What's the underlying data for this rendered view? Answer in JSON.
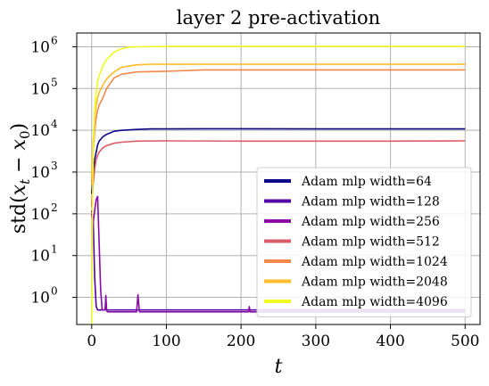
{
  "chart_data": {
    "type": "line",
    "title": "layer 2 pre-activation",
    "xlabel": "t",
    "ylabel": "std(x_t − x_0)",
    "xlim": [
      -20,
      520
    ],
    "ylim_log10": [
      -0.65,
      6.33
    ],
    "yscale": "log",
    "grid": true,
    "legend_position": "lower-right",
    "x_ticks": [
      0,
      100,
      200,
      300,
      400,
      500
    ],
    "x_tick_labels": [
      "0",
      "100",
      "200",
      "300",
      "400",
      "500"
    ],
    "y_ticks_log10": [
      0,
      1,
      2,
      3,
      4,
      5,
      6
    ],
    "y_tick_labels": [
      "10^0",
      "10^1",
      "10^2",
      "10^3",
      "10^4",
      "10^5",
      "10^6"
    ],
    "series": [
      {
        "name": "Adam mlp width=64",
        "color": "#0d0887",
        "x": [
          0,
          2,
          4,
          6,
          8,
          10,
          15,
          20,
          30,
          40,
          60,
          80,
          100,
          150,
          200,
          300,
          400,
          500
        ],
        "y": [
          300,
          800,
          2000,
          3000,
          4500,
          5500,
          7000,
          8000,
          9500,
          10000,
          10500,
          10800,
          10800,
          10900,
          10900,
          10800,
          10800,
          10800
        ]
      },
      {
        "name": "Adam mlp width=128",
        "color": "#5402a3",
        "x": [
          0,
          2,
          4,
          6,
          8,
          12,
          20,
          50,
          100,
          200,
          300,
          400,
          500
        ],
        "y": [
          120,
          80,
          3,
          0.6,
          0.5,
          0.5,
          0.5,
          0.5,
          0.5,
          0.5,
          0.5,
          0.5,
          0.5
        ]
      },
      {
        "name": "Adam mlp width=256",
        "color": "#8b0aa5",
        "x": [
          0,
          2,
          4,
          6,
          8,
          10,
          12,
          14,
          16,
          18,
          19,
          20,
          21,
          24,
          40,
          60,
          61,
          62,
          63,
          64,
          80,
          100,
          200,
          210,
          211,
          212,
          213,
          214,
          300,
          400,
          500
        ],
        "y": [
          100,
          60,
          120,
          220,
          260,
          20,
          1.5,
          0.5,
          0.5,
          0.5,
          1.1,
          0.5,
          0.45,
          0.45,
          0.45,
          0.45,
          0.7,
          1.15,
          0.7,
          0.45,
          0.45,
          0.45,
          0.45,
          0.45,
          0.6,
          0.45,
          0.45,
          0.45,
          0.45,
          0.45,
          0.45
        ]
      },
      {
        "name": "Adam mlp width=512",
        "color": "#db5c68",
        "x": [
          0,
          2,
          4,
          6,
          8,
          10,
          15,
          20,
          30,
          40,
          60,
          100,
          200,
          300,
          400,
          500
        ],
        "y": [
          150,
          500,
          1200,
          2000,
          2500,
          3000,
          3800,
          4300,
          4900,
          5200,
          5500,
          5600,
          5500,
          5500,
          5500,
          5600
        ]
      },
      {
        "name": "Adam mlp width=1024",
        "color": "#f48849",
        "x": [
          0,
          2,
          4,
          6,
          8,
          10,
          15,
          20,
          30,
          40,
          60,
          80,
          100,
          150,
          200,
          300,
          400,
          500
        ],
        "y": [
          500,
          3000,
          10000,
          20000,
          30000,
          40000,
          60000,
          100000,
          180000,
          220000,
          250000,
          255000,
          260000,
          280000,
          280000,
          280000,
          280000,
          280000
        ]
      },
      {
        "name": "Adam mlp width=2048",
        "color": "#febc2a",
        "x": [
          0,
          2,
          4,
          6,
          8,
          10,
          15,
          20,
          30,
          40,
          60,
          80,
          100,
          200,
          300,
          400,
          500
        ],
        "y": [
          800,
          5000,
          20000,
          40000,
          60000,
          80000,
          120000,
          170000,
          250000,
          320000,
          370000,
          380000,
          380000,
          380000,
          380000,
          380000,
          380000
        ]
      },
      {
        "name": "Adam mlp width=4096",
        "color": "#f0f921",
        "x": [
          0,
          1,
          2,
          4,
          6,
          8,
          10,
          15,
          20,
          30,
          40,
          50,
          60,
          100,
          200,
          300,
          400,
          500
        ],
        "y": [
          0.2,
          100,
          3000,
          30000,
          80000,
          150000,
          200000,
          350000,
          500000,
          750000,
          900000,
          980000,
          1000000,
          1020000,
          1020000,
          1020000,
          1020000,
          1020000
        ]
      }
    ]
  }
}
